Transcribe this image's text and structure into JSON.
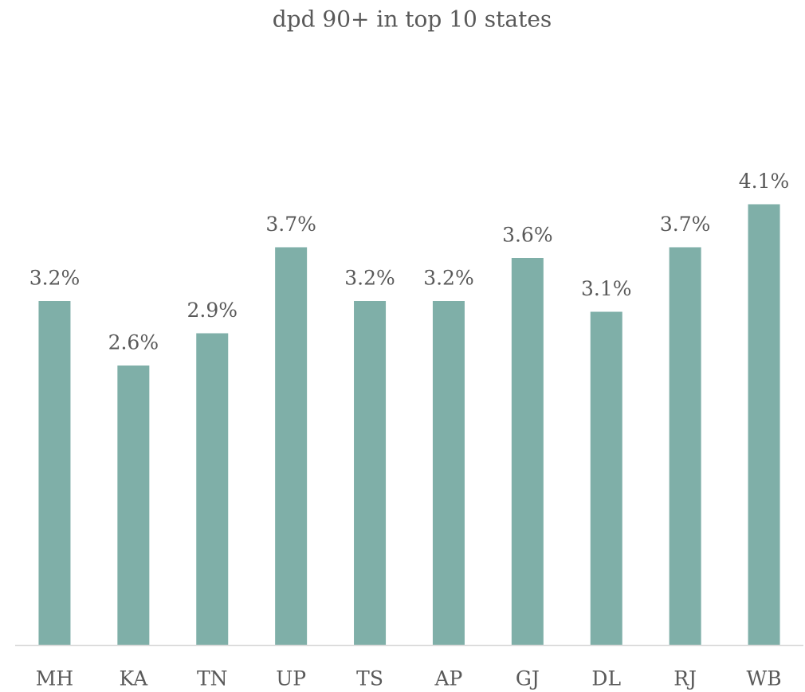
{
  "chart_data": {
    "type": "bar",
    "title": "dpd 90+ in top 10 states",
    "categories": [
      "MH",
      "KA",
      "TN",
      "UP",
      "TS",
      "AP",
      "GJ",
      "DL",
      "RJ",
      "WB"
    ],
    "values": [
      3.2,
      2.6,
      2.9,
      3.7,
      3.2,
      3.2,
      3.6,
      3.1,
      3.7,
      4.1
    ],
    "value_labels": [
      "3.2%",
      "2.6%",
      "2.9%",
      "3.7%",
      "3.2%",
      "3.2%",
      "3.6%",
      "3.1%",
      "3.7%",
      "4.1%"
    ],
    "color": "#7fafa8"
  }
}
